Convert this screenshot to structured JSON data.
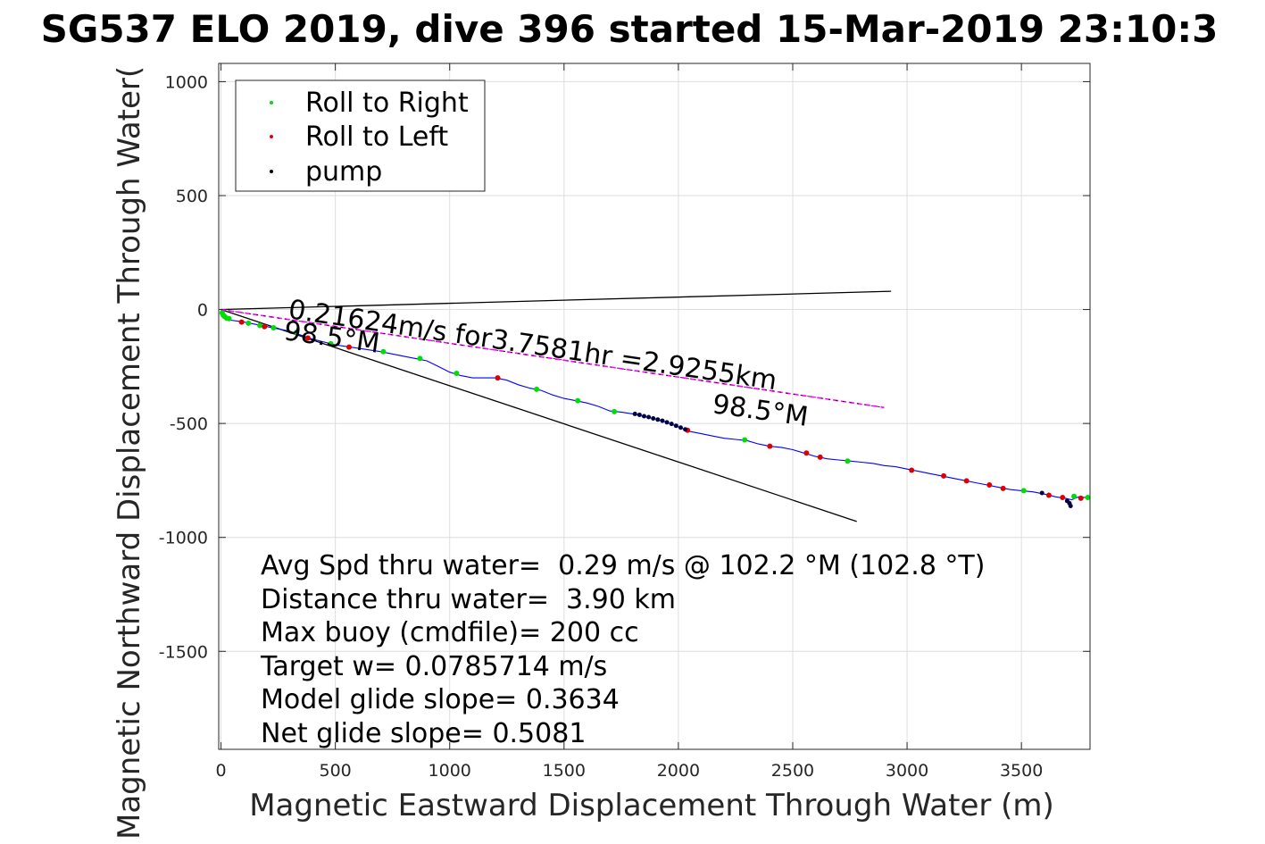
{
  "chart_data": {
    "type": "scatter",
    "title": "SG537 ELO 2019, dive 396 started 15-Mar-2019 23:10:3",
    "xlabel": "Magnetic Eastward Displacement Through Water (m)",
    "ylabel": "Magnetic Northward Displacement Through Water(",
    "xlim": [
      -10,
      3800
    ],
    "ylim": [
      -1930,
      1080
    ],
    "xticks": [
      0,
      500,
      1000,
      1500,
      2000,
      2500,
      3000,
      3500
    ],
    "yticks": [
      1000,
      500,
      0,
      -500,
      -1000,
      -1500
    ],
    "xtick_labels": [
      "0",
      "500",
      "1000",
      "1500",
      "2000",
      "2500",
      "3000",
      "3500"
    ],
    "ytick_labels": [
      "1000",
      "500",
      "0",
      "-500",
      "-1000",
      "-1500"
    ],
    "grid": true,
    "legend_position": "top-left",
    "legend": [
      {
        "label": "Roll to Right",
        "color": "#00dd00"
      },
      {
        "label": "Roll to Left",
        "color": "#dd0000"
      },
      {
        "label": "pump",
        "color": "#000000"
      }
    ],
    "track": {
      "color": "#0000ff",
      "points": [
        [
          0,
          -20
        ],
        [
          30,
          -45
        ],
        [
          100,
          -55
        ],
        [
          200,
          -75
        ],
        [
          300,
          -95
        ],
        [
          400,
          -130
        ],
        [
          500,
          -155
        ],
        [
          600,
          -170
        ],
        [
          700,
          -185
        ],
        [
          800,
          -205
        ],
        [
          850,
          -215
        ],
        [
          900,
          -225
        ],
        [
          950,
          -250
        ],
        [
          1000,
          -275
        ],
        [
          1050,
          -290
        ],
        [
          1100,
          -300
        ],
        [
          1150,
          -300
        ],
        [
          1200,
          -300
        ],
        [
          1250,
          -310
        ],
        [
          1300,
          -330
        ],
        [
          1350,
          -345
        ],
        [
          1400,
          -355
        ],
        [
          1450,
          -375
        ],
        [
          1500,
          -390
        ],
        [
          1550,
          -400
        ],
        [
          1600,
          -410
        ],
        [
          1650,
          -425
        ],
        [
          1700,
          -445
        ],
        [
          1750,
          -450
        ],
        [
          1800,
          -458
        ],
        [
          1850,
          -470
        ],
        [
          1900,
          -480
        ],
        [
          1950,
          -495
        ],
        [
          2000,
          -515
        ],
        [
          2050,
          -535
        ],
        [
          2100,
          -545
        ],
        [
          2150,
          -555
        ],
        [
          2200,
          -565
        ],
        [
          2250,
          -570
        ],
        [
          2300,
          -575
        ],
        [
          2350,
          -590
        ],
        [
          2400,
          -600
        ],
        [
          2450,
          -605
        ],
        [
          2500,
          -615
        ],
        [
          2550,
          -630
        ],
        [
          2600,
          -645
        ],
        [
          2650,
          -655
        ],
        [
          2700,
          -660
        ],
        [
          2750,
          -665
        ],
        [
          2800,
          -670
        ],
        [
          2850,
          -675
        ],
        [
          2900,
          -685
        ],
        [
          2950,
          -690
        ],
        [
          3000,
          -700
        ],
        [
          3050,
          -710
        ],
        [
          3100,
          -720
        ],
        [
          3150,
          -730
        ],
        [
          3200,
          -740
        ],
        [
          3250,
          -750
        ],
        [
          3300,
          -760
        ],
        [
          3350,
          -770
        ],
        [
          3400,
          -780
        ],
        [
          3450,
          -790
        ],
        [
          3500,
          -795
        ],
        [
          3550,
          -800
        ],
        [
          3600,
          -810
        ],
        [
          3650,
          -822
        ],
        [
          3700,
          -830
        ],
        [
          3720,
          -835
        ],
        [
          3750,
          -822
        ],
        [
          3780,
          -825
        ],
        [
          3800,
          -820
        ]
      ]
    },
    "roll_right_points": [
      [
        5,
        -15
      ],
      [
        10,
        -25
      ],
      [
        15,
        -30
      ],
      [
        25,
        -38
      ],
      [
        35,
        -40
      ],
      [
        120,
        -60
      ],
      [
        170,
        -70
      ],
      [
        230,
        -80
      ],
      [
        330,
        -100
      ],
      [
        480,
        -150
      ],
      [
        710,
        -185
      ],
      [
        870,
        -215
      ],
      [
        1030,
        -280
      ],
      [
        1380,
        -350
      ],
      [
        1560,
        -400
      ],
      [
        1720,
        -448
      ],
      [
        2290,
        -572
      ],
      [
        2740,
        -665
      ],
      [
        3510,
        -795
      ],
      [
        3730,
        -820
      ],
      [
        3790,
        -825
      ]
    ],
    "roll_left_points": [
      [
        90,
        -55
      ],
      [
        190,
        -75
      ],
      [
        380,
        -125
      ],
      [
        560,
        -165
      ],
      [
        1210,
        -300
      ],
      [
        2040,
        -530
      ],
      [
        2400,
        -600
      ],
      [
        2560,
        -630
      ],
      [
        2620,
        -648
      ],
      [
        3020,
        -705
      ],
      [
        3160,
        -730
      ],
      [
        3260,
        -752
      ],
      [
        3360,
        -770
      ],
      [
        3420,
        -785
      ],
      [
        3620,
        -815
      ],
      [
        3680,
        -825
      ],
      [
        3760,
        -828
      ]
    ],
    "pump_points": [
      [
        1810,
        -458
      ],
      [
        1830,
        -462
      ],
      [
        1850,
        -468
      ],
      [
        1870,
        -472
      ],
      [
        1890,
        -478
      ],
      [
        1910,
        -483
      ],
      [
        1930,
        -488
      ],
      [
        1950,
        -495
      ],
      [
        1970,
        -502
      ],
      [
        1990,
        -510
      ],
      [
        2010,
        -518
      ],
      [
        2030,
        -526
      ],
      [
        3590,
        -805
      ],
      [
        3700,
        -840
      ],
      [
        3710,
        -850
      ],
      [
        3715,
        -862
      ]
    ],
    "current_line": {
      "color": "#ff00ff",
      "points": [
        [
          0,
          0
        ],
        [
          2900,
          -430
        ]
      ]
    },
    "heading_lines": [
      {
        "color": "#000000",
        "points": [
          [
            0,
            0
          ],
          [
            2930,
            80
          ]
        ]
      },
      {
        "color": "#000000",
        "points": [
          [
            0,
            0
          ],
          [
            2780,
            -930
          ]
        ]
      }
    ],
    "annotations": {
      "current": "0.21624m/s for3.7581hr =2.9255km",
      "heading1": "98.5°M",
      "heading2": "98.5°M"
    },
    "info_lines": [
      "Avg Spd thru water=  0.29 m/s @ 102.2 °M (102.8 °T)",
      "Distance thru water=  3.90 km",
      "Max buoy (cmdfile)= 200 cc",
      "Target w= 0.0785714 m/s",
      "Model glide slope= 0.3634",
      "Net glide slope= 0.5081"
    ]
  }
}
